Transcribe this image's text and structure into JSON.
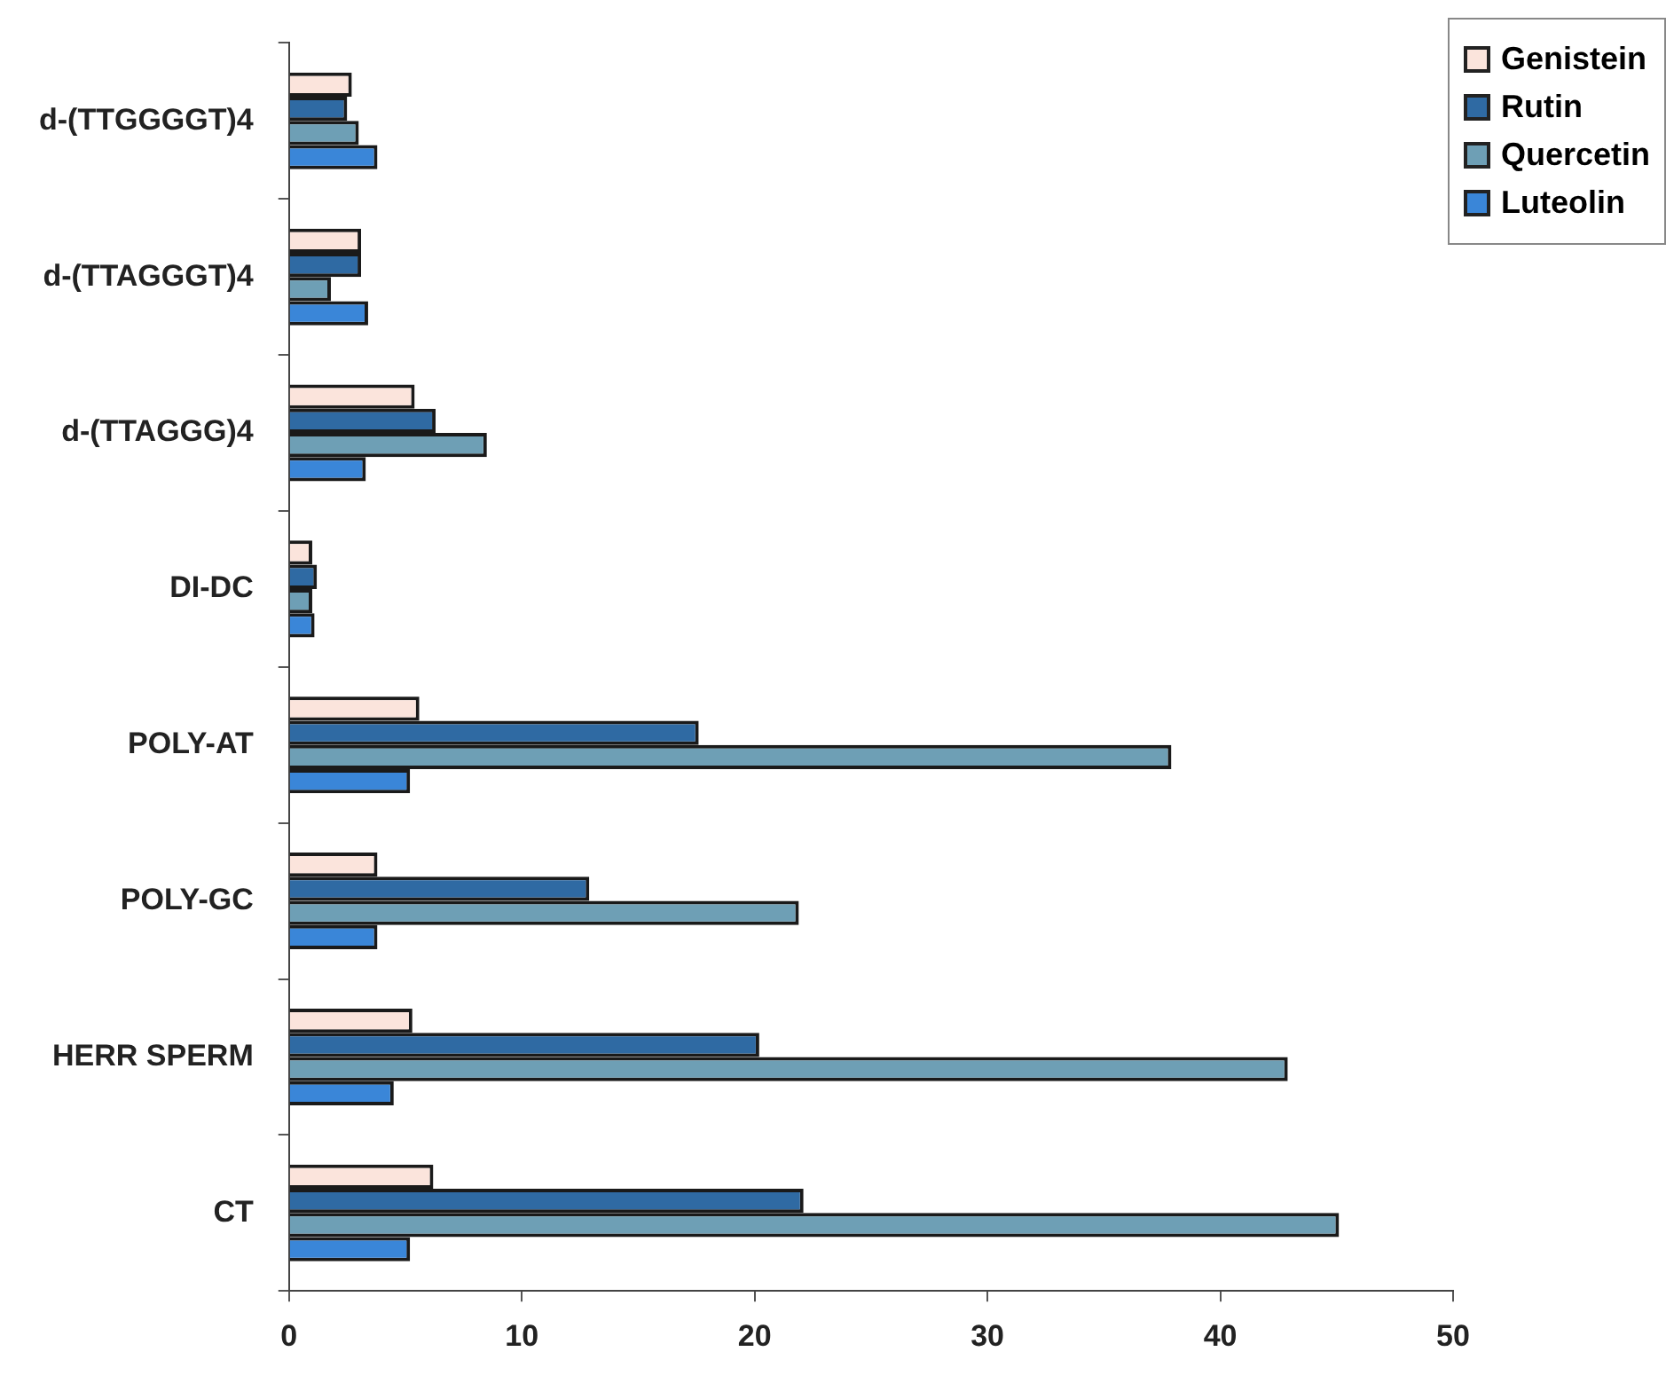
{
  "chart_data": {
    "type": "bar",
    "orientation": "horizontal",
    "categories": [
      "d-(TTGGGGT)4",
      "d-(TTAGGGT)4",
      "d-(TTAGGG)4",
      "DI-DC",
      "POLY-AT",
      "POLY-GC",
      "HERR SPERM",
      "CT"
    ],
    "series": [
      {
        "name": "Genistein",
        "color": "#fbe4dc",
        "values": [
          2.7,
          3.1,
          5.4,
          1.0,
          5.6,
          3.8,
          5.3,
          6.2
        ]
      },
      {
        "name": "Rutin",
        "color": "#2f6aa3",
        "values": [
          2.5,
          3.1,
          6.3,
          1.2,
          17.6,
          12.9,
          20.2,
          22.1
        ]
      },
      {
        "name": "Quercetin",
        "color": "#6e9fb5",
        "values": [
          3.0,
          1.8,
          8.5,
          1.0,
          37.9,
          21.9,
          42.9,
          45.1
        ]
      },
      {
        "name": "Luteolin",
        "color": "#3a86d8",
        "values": [
          3.8,
          3.4,
          3.3,
          1.1,
          5.2,
          3.8,
          4.5,
          5.2
        ]
      }
    ],
    "xlim": [
      0,
      50
    ],
    "xticks": [
      0,
      10,
      20,
      30,
      40,
      50
    ],
    "grid": false,
    "legend": "top right"
  }
}
